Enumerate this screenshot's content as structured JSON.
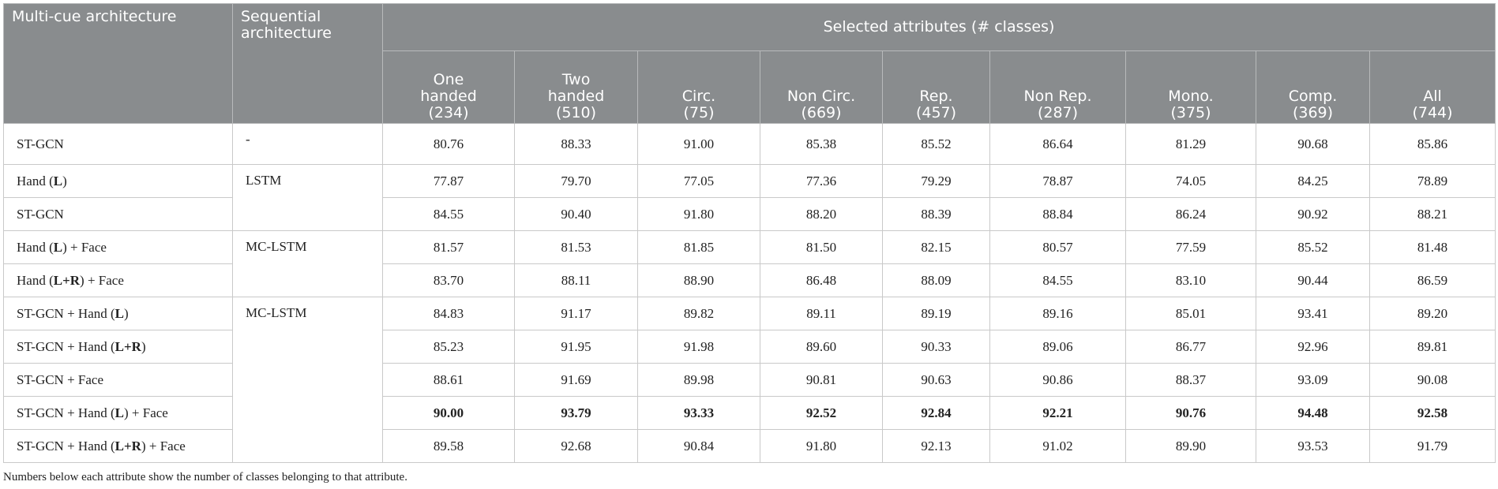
{
  "header": {
    "multi_cue": "Multi-cue architecture",
    "sequential": "Sequential architecture",
    "attributes": "Selected attributes (# classes)",
    "columns": [
      {
        "name": "One handed",
        "count": "(234)"
      },
      {
        "name": "Two handed",
        "count": "(510)"
      },
      {
        "name": "Circ.",
        "count": "(75)"
      },
      {
        "name": "Non Circ.",
        "count": "(669)"
      },
      {
        "name": "Rep.",
        "count": "(457)"
      },
      {
        "name": "Non Rep.",
        "count": "(287)"
      },
      {
        "name": "Mono.",
        "count": "(375)"
      },
      {
        "name": "Comp.",
        "count": "(369)"
      },
      {
        "name": "All",
        "count": "(744)"
      }
    ]
  },
  "table": {
    "groups": [
      {
        "sequential": "-",
        "rows": [
          {
            "multi_cue": [
              "ST-GCN"
            ],
            "values": [
              "80.76",
              "88.33",
              "91.00",
              "85.38",
              "85.52",
              "86.64",
              "81.29",
              "90.68",
              "85.86"
            ]
          }
        ]
      },
      {
        "sequential": "LSTM",
        "rows": [
          {
            "multi_cue": [
              "Hand (",
              "L",
              ")"
            ],
            "values": [
              "77.87",
              "79.70",
              "77.05",
              "77.36",
              "79.29",
              "78.87",
              "74.05",
              "84.25",
              "78.89"
            ]
          },
          {
            "multi_cue": [
              "ST-GCN"
            ],
            "values": [
              "84.55",
              "90.40",
              "91.80",
              "88.20",
              "88.39",
              "88.84",
              "86.24",
              "90.92",
              "88.21"
            ]
          }
        ]
      },
      {
        "sequential": "MC-LSTM",
        "rows": [
          {
            "multi_cue": [
              "Hand (",
              "L",
              ") + Face"
            ],
            "values": [
              "81.57",
              "81.53",
              "81.85",
              "81.50",
              "82.15",
              "80.57",
              "77.59",
              "85.52",
              "81.48"
            ]
          },
          {
            "multi_cue": [
              "Hand (",
              "L+R",
              ") + Face"
            ],
            "values": [
              "83.70",
              "88.11",
              "88.90",
              "86.48",
              "88.09",
              "84.55",
              "83.10",
              "90.44",
              "86.59"
            ]
          }
        ]
      },
      {
        "sequential": "MC-LSTM",
        "rows": [
          {
            "multi_cue": [
              "ST-GCN + Hand (",
              "L",
              ")"
            ],
            "values": [
              "84.83",
              "91.17",
              "89.82",
              "89.11",
              "89.19",
              "89.16",
              "85.01",
              "93.41",
              "89.20"
            ]
          },
          {
            "multi_cue": [
              "ST-GCN + Hand (",
              "L+R",
              ")"
            ],
            "values": [
              "85.23",
              "91.95",
              "91.98",
              "89.60",
              "90.33",
              "89.06",
              "86.77",
              "92.96",
              "89.81"
            ]
          },
          {
            "multi_cue": [
              "ST-GCN + Face"
            ],
            "values": [
              "88.61",
              "91.69",
              "89.98",
              "90.81",
              "90.63",
              "90.86",
              "88.37",
              "93.09",
              "90.08"
            ]
          },
          {
            "multi_cue": [
              "ST-GCN + Hand (",
              "L",
              ") + Face"
            ],
            "bold": true,
            "values": [
              "90.00",
              "93.79",
              "93.33",
              "92.52",
              "92.84",
              "92.21",
              "90.76",
              "94.48",
              "92.58"
            ]
          },
          {
            "multi_cue": [
              "ST-GCN + Hand (",
              "L+R",
              ") + Face"
            ],
            "values": [
              "89.58",
              "92.68",
              "90.84",
              "91.80",
              "92.13",
              "91.02",
              "89.90",
              "93.53",
              "91.79"
            ]
          }
        ]
      }
    ]
  },
  "footnote": "Numbers below each attribute show the number of classes belonging to that attribute."
}
